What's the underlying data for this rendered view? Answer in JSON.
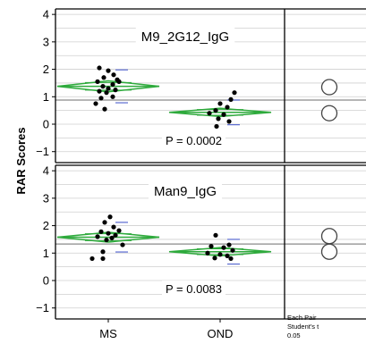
{
  "chart_data": {
    "type": "scatter",
    "ylabel": "RAR Scores",
    "categories": [
      "MS",
      "OND"
    ],
    "y_ticks": [
      "4",
      "3",
      "2",
      "1",
      "0",
      "−1"
    ],
    "ylim": [
      -1.4,
      4.2
    ],
    "grid": true,
    "colors": {
      "diamond": "#2eaa3c",
      "points": "#000000",
      "grand_mean": "#8a8a8a",
      "sd_marks": "#5a6ad0",
      "frame": "#000000"
    },
    "comparison_note": [
      "Each Pair",
      "Student's t",
      "0.05"
    ],
    "panels": [
      {
        "title": "M9_2G12_IgG",
        "p_value": "P = 0.0002",
        "grand_mean": 0.88,
        "groups": [
          {
            "name": "MS",
            "mean": 1.38,
            "ci": [
              1.18,
              1.58
            ],
            "points": [
              {
                "x": -0.1,
                "y": 2.05
              },
              {
                "x": 0.0,
                "y": 1.95
              },
              {
                "x": 0.06,
                "y": 1.8
              },
              {
                "x": -0.05,
                "y": 1.7
              },
              {
                "x": 0.1,
                "y": 1.62
              },
              {
                "x": -0.12,
                "y": 1.55
              },
              {
                "x": 0.12,
                "y": 1.55
              },
              {
                "x": 0.05,
                "y": 1.45
              },
              {
                "x": -0.06,
                "y": 1.38
              },
              {
                "x": 0.0,
                "y": 1.3
              },
              {
                "x": 0.08,
                "y": 1.25
              },
              {
                "x": -0.1,
                "y": 1.2
              },
              {
                "x": -0.02,
                "y": 1.15
              },
              {
                "x": 0.05,
                "y": 1.0
              },
              {
                "x": -0.08,
                "y": 0.95
              },
              {
                "x": -0.14,
                "y": 0.75
              },
              {
                "x": -0.04,
                "y": 0.55
              }
            ]
          },
          {
            "name": "OND",
            "mean": 0.43,
            "ci": [
              0.28,
              0.58
            ],
            "points": [
              {
                "x": 0.16,
                "y": 1.15
              },
              {
                "x": 0.12,
                "y": 0.9
              },
              {
                "x": 0.0,
                "y": 0.75
              },
              {
                "x": 0.08,
                "y": 0.62
              },
              {
                "x": -0.05,
                "y": 0.5
              },
              {
                "x": -0.12,
                "y": 0.4
              },
              {
                "x": 0.04,
                "y": 0.35
              },
              {
                "x": -0.02,
                "y": 0.2
              },
              {
                "x": 0.1,
                "y": 0.1
              },
              {
                "x": -0.04,
                "y": -0.08
              }
            ]
          }
        ],
        "comparison_circles": [
          1.35,
          0.4
        ]
      },
      {
        "title": "Man9_IgG",
        "p_value": "P = 0.0083",
        "grand_mean": 1.33,
        "groups": [
          {
            "name": "MS",
            "mean": 1.58,
            "ci": [
              1.4,
              1.76
            ],
            "points": [
              {
                "x": 0.02,
                "y": 2.32
              },
              {
                "x": -0.04,
                "y": 2.12
              },
              {
                "x": 0.06,
                "y": 1.95
              },
              {
                "x": 0.12,
                "y": 1.82
              },
              {
                "x": -0.08,
                "y": 1.78
              },
              {
                "x": 0.0,
                "y": 1.72
              },
              {
                "x": 0.08,
                "y": 1.65
              },
              {
                "x": -0.12,
                "y": 1.6
              },
              {
                "x": 0.04,
                "y": 1.55
              },
              {
                "x": -0.02,
                "y": 1.48
              },
              {
                "x": 0.16,
                "y": 1.3
              },
              {
                "x": -0.06,
                "y": 1.05
              },
              {
                "x": -0.18,
                "y": 0.8
              },
              {
                "x": -0.06,
                "y": 0.8
              }
            ]
          },
          {
            "name": "OND",
            "mean": 1.05,
            "ci": [
              0.9,
              1.2
            ],
            "points": [
              {
                "x": -0.05,
                "y": 1.65
              },
              {
                "x": 0.1,
                "y": 1.3
              },
              {
                "x": -0.1,
                "y": 1.25
              },
              {
                "x": 0.04,
                "y": 1.2
              },
              {
                "x": 0.14,
                "y": 1.1
              },
              {
                "x": -0.14,
                "y": 1.0
              },
              {
                "x": 0.0,
                "y": 0.95
              },
              {
                "x": 0.08,
                "y": 0.9
              },
              {
                "x": -0.06,
                "y": 0.82
              },
              {
                "x": 0.12,
                "y": 0.8
              }
            ]
          }
        ],
        "comparison_circles": [
          1.62,
          1.05
        ]
      }
    ]
  }
}
